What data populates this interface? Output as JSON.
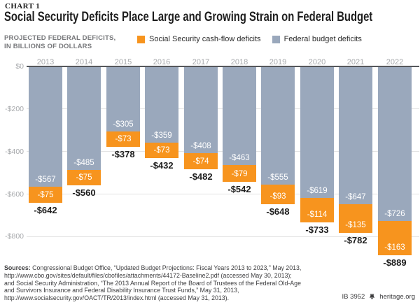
{
  "header": {
    "kicker": "CHART 1",
    "title": "Social Security Deficits Place Large and Growing Strain on Federal Budget"
  },
  "axis_title": {
    "line1": "PROJECTED FEDERAL DEFICITS,",
    "line2": "IN BILLIONS OF DOLLARS"
  },
  "legend": {
    "items": [
      {
        "label": "Social Security cash-flow deficits",
        "color": "#F7941E"
      },
      {
        "label": "Federal budget deficits",
        "color": "#9AA8BC"
      }
    ]
  },
  "chart_data": {
    "type": "bar",
    "subtype": "stacked",
    "title": "Social Security Deficits Place Large and Growing Strain on Federal Budget",
    "ylabel": "PROJECTED FEDERAL DEFICITS, IN BILLIONS OF DOLLARS",
    "categories": [
      "2013",
      "2014",
      "2015",
      "2016",
      "2017",
      "2018",
      "2019",
      "2020",
      "2021",
      "2022"
    ],
    "series": [
      {
        "name": "Federal budget deficits",
        "color": "#9AA8BC",
        "values": [
          -567,
          -485,
          -305,
          -359,
          -408,
          -463,
          -555,
          -619,
          -647,
          -726
        ],
        "labels": [
          "-$567",
          "-$485",
          "-$305",
          "-$359",
          "-$408",
          "-$463",
          "-$555",
          "-$619",
          "-$647",
          "-$726"
        ],
        "label_color": "#FFFFFF"
      },
      {
        "name": "Social Security cash-flow deficits",
        "color": "#F7941E",
        "values": [
          -75,
          -75,
          -73,
          -73,
          -74,
          -79,
          -93,
          -114,
          -135,
          -163
        ],
        "labels": [
          "-$75",
          "-$75",
          "-$73",
          "-$73",
          "-$74",
          "-$79",
          "-$93",
          "-$114",
          "-$135",
          "-$163"
        ],
        "label_color": "#FFFFFF"
      }
    ],
    "totals": {
      "values": [
        -642,
        -560,
        -378,
        -432,
        -482,
        -542,
        -648,
        -733,
        -782,
        -889
      ],
      "labels": [
        "-$642",
        "-$560",
        "-$378",
        "-$432",
        "-$482",
        "-$542",
        "-$648",
        "-$733",
        "-$782",
        "-$889"
      ]
    },
    "yticks": [
      {
        "value": 0,
        "label": "$0"
      },
      {
        "value": -200,
        "label": "-$200"
      },
      {
        "value": -400,
        "label": "-$400"
      },
      {
        "value": -600,
        "label": "-$600"
      },
      {
        "value": -800,
        "label": "-$800"
      }
    ],
    "ylim": [
      0,
      -900
    ],
    "grid": true,
    "legend_position": "top"
  },
  "sources": {
    "label": "Sources:",
    "lines": [
      "Congressional Budget Office, “Updated Budget Projections: Fiscal Years 2013 to 2023,” May 2013,",
      "http://www.cbo.gov/sites/default/files/cbofiles/attachments/44172-Baseline2.pdf (accessed May 30, 2013);",
      "and Social Security Administration, “The 2013 Annual Report of the Board of Trustees of the Federal Old-Age",
      "and Survivors Insurance and Federal Disability Insurance Trust Funds,” May 31, 2013,",
      "http://www.socialsecurity.gov/OACT/TR/2013/index.html (accessed May 31, 2013)."
    ]
  },
  "footer": {
    "id": "IB 3952",
    "site": "heritage.org",
    "bell_icon": "liberty-bell-icon"
  }
}
